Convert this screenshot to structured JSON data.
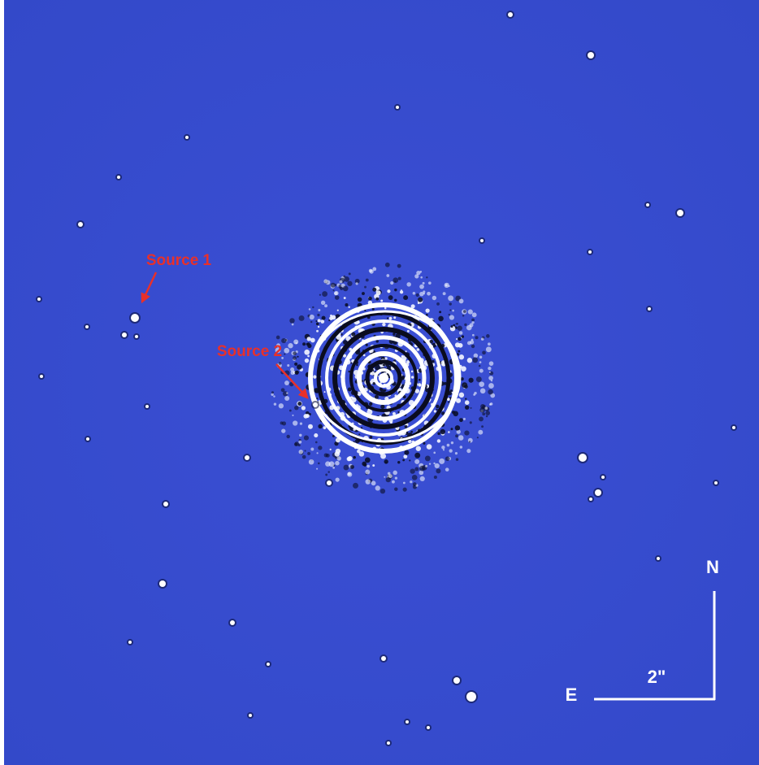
{
  "annotations": [
    {
      "label": "Source 1"
    },
    {
      "label": "Source 2"
    }
  ],
  "compass": {
    "north": "N",
    "east": "E"
  },
  "scale_bar": {
    "label": "2\""
  }
}
